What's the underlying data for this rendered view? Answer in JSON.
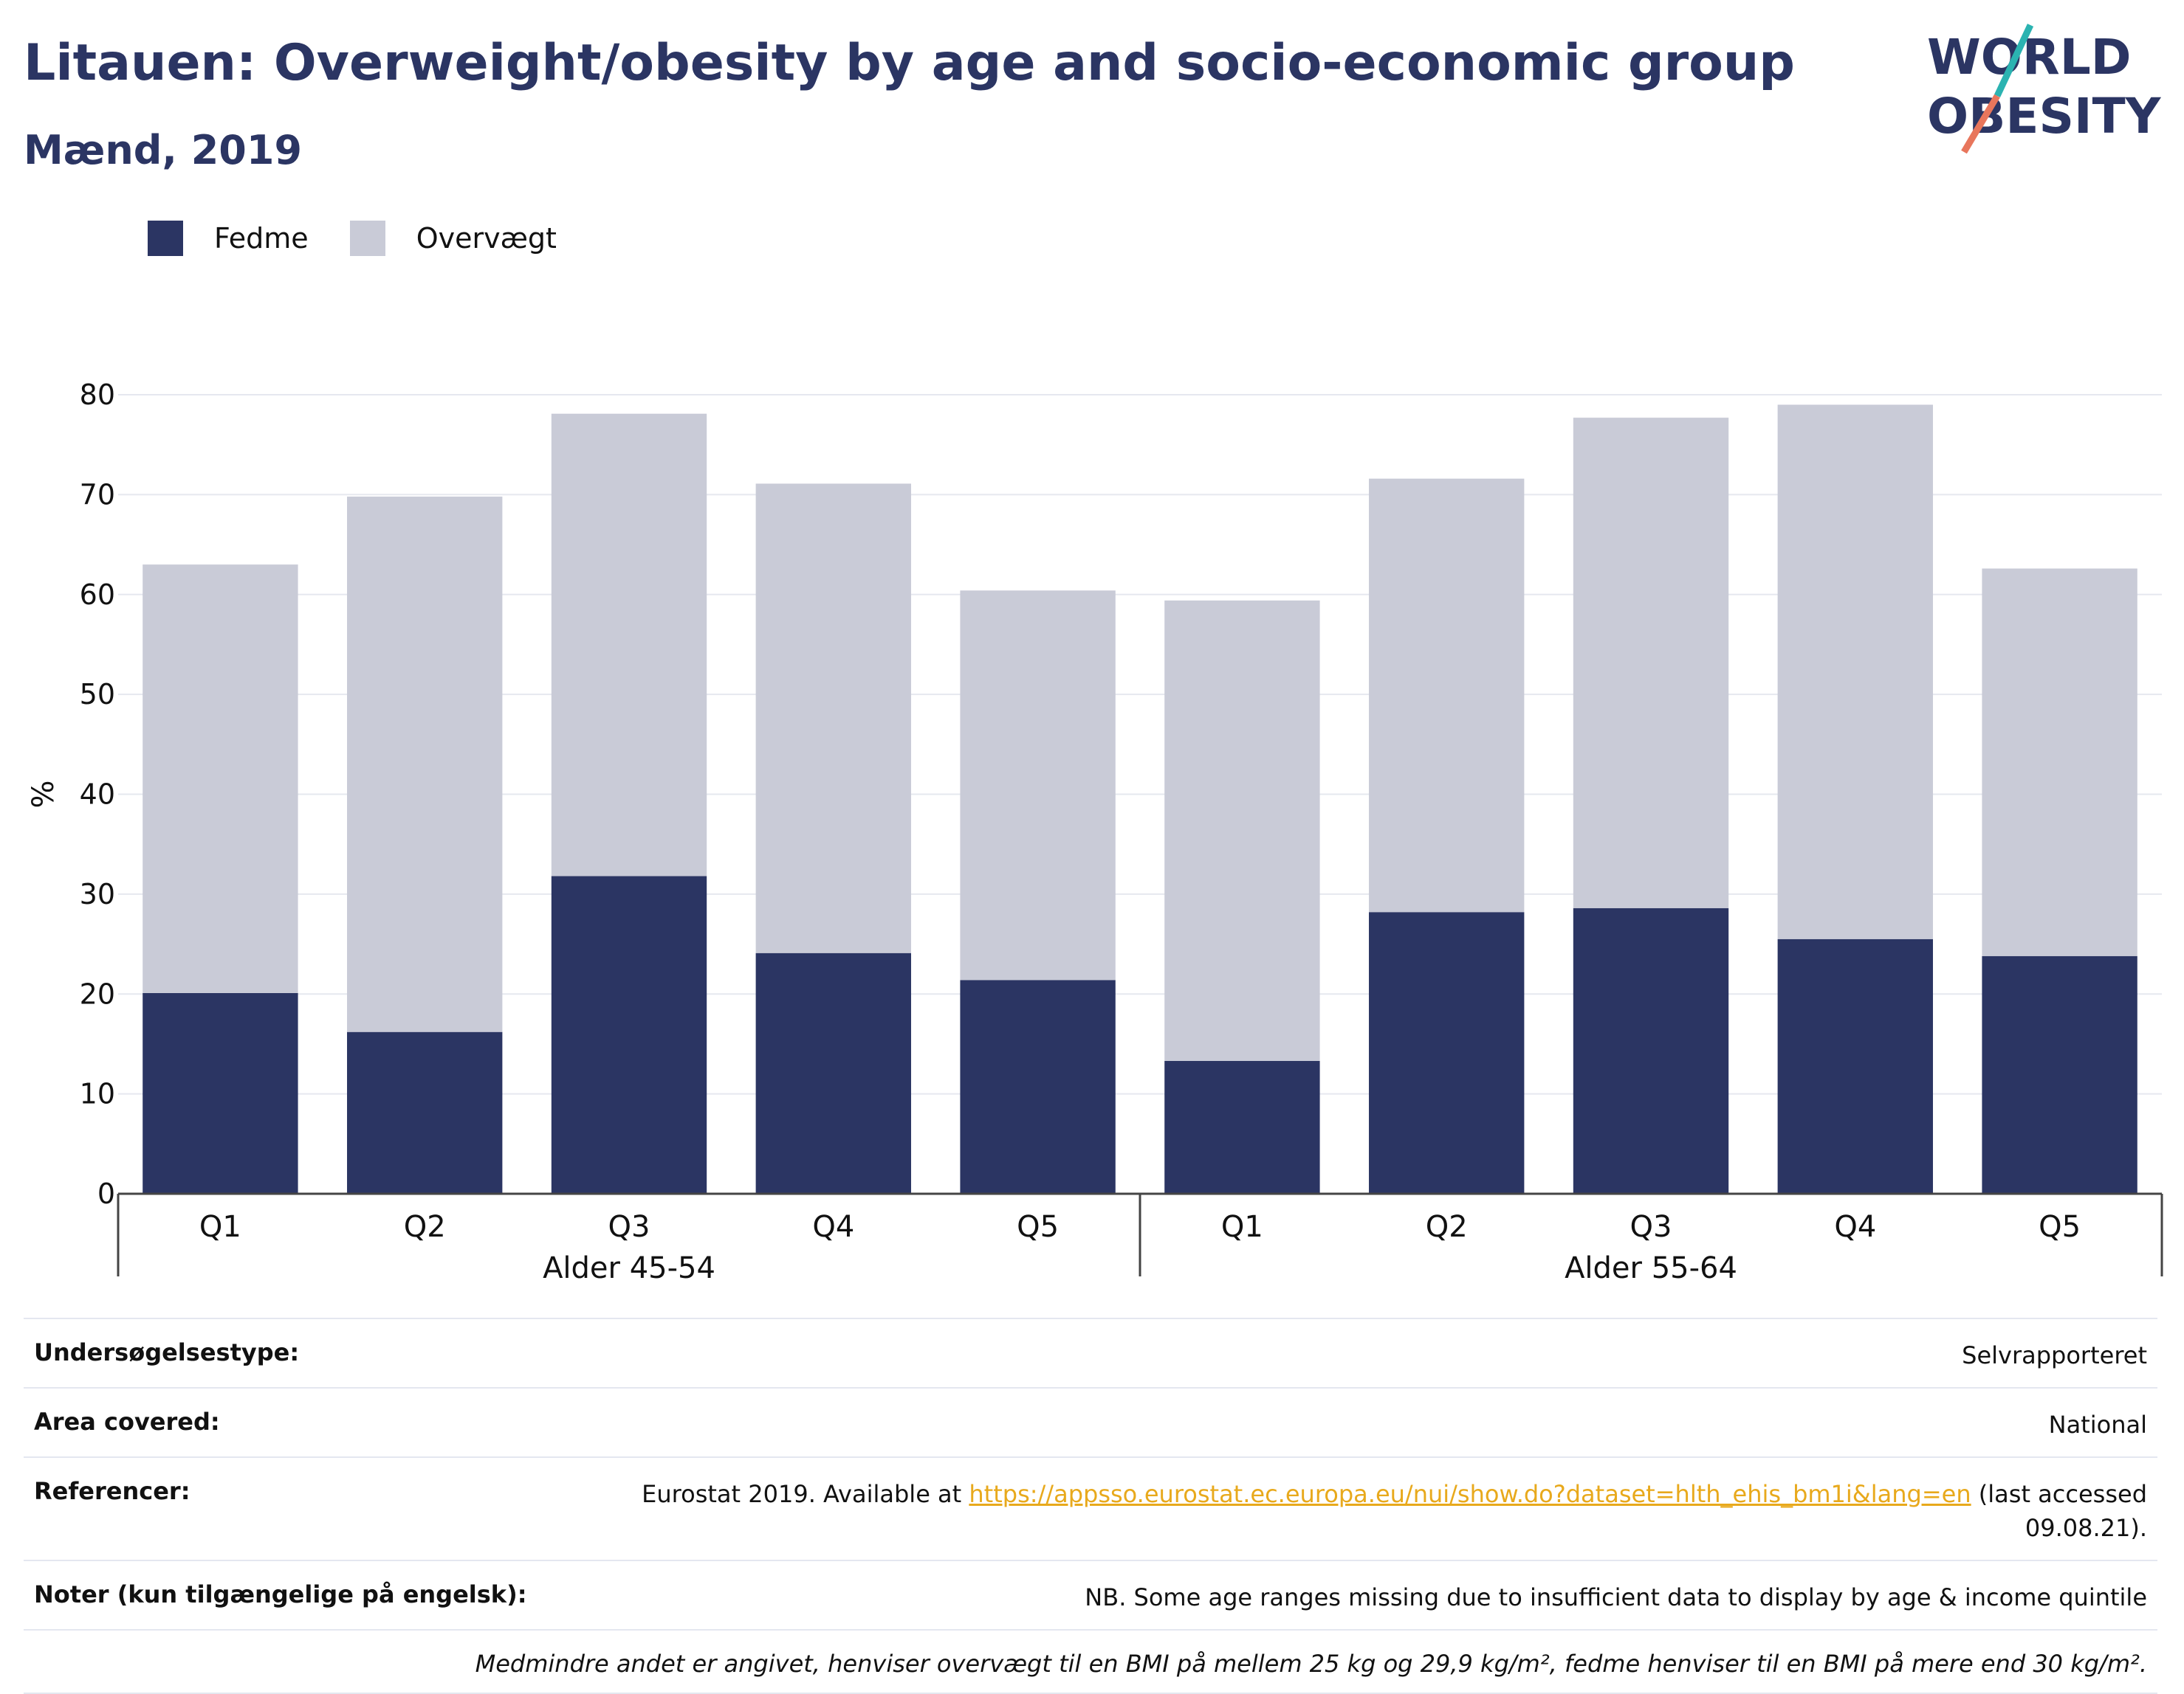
{
  "header": {
    "title": "Litauen: Overweight/obesity by age and socio-economic group",
    "subtitle": "Mænd, 2019"
  },
  "logo": {
    "line1": "WORLD",
    "line2": "OBESITY"
  },
  "colors": {
    "fedme": "#2b3563",
    "overvaegt": "#c9cbd7",
    "text": "#2b3563",
    "link": "#e8a91c"
  },
  "chart_data": {
    "type": "bar",
    "stacked": true,
    "ylabel": "%",
    "ylim": [
      0,
      80
    ],
    "yticks": [
      0,
      10,
      20,
      30,
      40,
      50,
      60,
      70,
      80
    ],
    "groups": [
      {
        "label": "Alder 45-54",
        "categories": [
          "Q1",
          "Q2",
          "Q3",
          "Q4",
          "Q5"
        ]
      },
      {
        "label": "Alder 55-64",
        "categories": [
          "Q1",
          "Q2",
          "Q3",
          "Q4",
          "Q5"
        ]
      }
    ],
    "series": [
      {
        "name": "Fedme",
        "values": [
          20.1,
          16.2,
          31.8,
          24.1,
          21.4,
          13.3,
          28.2,
          28.6,
          25.5,
          23.8
        ]
      },
      {
        "name": "Overvægt",
        "values": [
          42.9,
          53.6,
          46.3,
          47.0,
          39.0,
          46.1,
          43.4,
          49.1,
          53.5,
          38.8
        ]
      }
    ],
    "legend": "top-left",
    "grid": true
  },
  "info": {
    "survey_type": {
      "label": "Undersøgelsestype:",
      "value": "Selvrapporteret"
    },
    "area": {
      "label": "Area covered:",
      "value": "National"
    },
    "references": {
      "label": "Referencer:",
      "prefix": "Eurostat 2019. Available at ",
      "link": "https://appsso.eurostat.ec.europa.eu/nui/show.do?dataset=hlth_ehis_bm1i&lang=en",
      "suffix": " (last accessed 09.08.21)."
    },
    "notes": {
      "label": "Noter (kun tilgængelige på engelsk):",
      "value": "NB. Some age ranges missing due to insufficient data to display by age & income quintile"
    },
    "footnote": "Medmindre andet er angivet, henviser overvægt til en BMI på mellem 25 kg og 29,9 kg/m², fedme henviser til en BMI på mere end 30 kg/m²."
  }
}
